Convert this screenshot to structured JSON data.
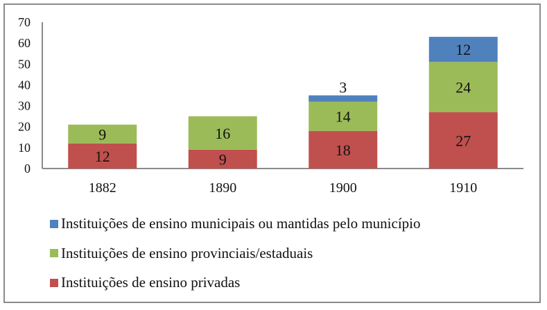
{
  "chart_data": {
    "type": "bar",
    "stacked": true,
    "categories": [
      "1882",
      "1890",
      "1900",
      "1910"
    ],
    "series": [
      {
        "name": "Instituições de ensino privadas",
        "color": "#c0504d",
        "values": [
          12,
          9,
          18,
          27
        ]
      },
      {
        "name": "Instituições de ensino provinciais/estaduais",
        "color": "#9bbb59",
        "values": [
          9,
          16,
          14,
          24
        ]
      },
      {
        "name": "Instituições de ensino municipais ou mantidas pelo município",
        "color": "#4f81bd",
        "values": [
          null,
          null,
          3,
          12
        ]
      }
    ],
    "legend_order": [
      2,
      1,
      0
    ],
    "legend_position": "bottom",
    "ylim": [
      0,
      70
    ],
    "yticks": [
      0,
      10,
      20,
      30,
      40,
      50,
      60,
      70
    ],
    "grid": false,
    "title": "",
    "xlabel": "",
    "ylabel": ""
  }
}
